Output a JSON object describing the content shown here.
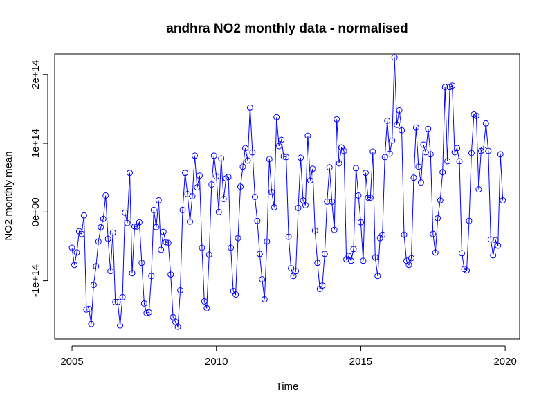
{
  "chart_data": {
    "type": "line",
    "title": "andhra NO2 monthly data - normalised",
    "xlabel": "Time",
    "ylabel": "NO2 monthly mean",
    "xlim": [
      2004.4,
      2020.5
    ],
    "ylim": [
      -185000000000000.0,
      230000000000000.0
    ],
    "x_ticks": [
      2005,
      2010,
      2015,
      2020
    ],
    "x_tick_labels": [
      "2005",
      "2010",
      "2015",
      "2020"
    ],
    "y_ticks": [
      -100000000000000.0,
      0,
      100000000000000.0,
      200000000000000.0
    ],
    "y_tick_labels": [
      "-1e+14",
      "0e+00",
      "1e+14",
      "2e+14"
    ],
    "grid": false,
    "legend": "none",
    "series_color": "#0000ff",
    "marker": "open-circle",
    "start_year": 2005,
    "points_per_year": 12,
    "values": [
      -52000000000000.0,
      -77000000000000.0,
      -59000000000000.0,
      -28000000000000.0,
      -32000000000000.0,
      -5000000000000.0,
      -142000000000000.0,
      -141000000000000.0,
      -163000000000000.0,
      -106000000000000.0,
      -79000000000000.0,
      -43000000000000.0,
      -22000000000000.0,
      -10000000000000.0,
      24000000000000.0,
      -39000000000000.0,
      -86000000000000.0,
      -30000000000000.0,
      -131000000000000.0,
      -131000000000000.0,
      -165000000000000.0,
      -124000000000000.0,
      -1000000000000.0,
      -16000000000000.0,
      57000000000000.0,
      -89000000000000.0,
      -21000000000000.0,
      -21000000000000.0,
      -15000000000000.0,
      -74000000000000.0,
      -133000000000000.0,
      -147000000000000.0,
      -146000000000000.0,
      -93000000000000.0,
      3000000000000.0,
      -22000000000000.0,
      17000000000000.0,
      -55000000000000.0,
      -29000000000000.0,
      -44000000000000.0,
      -45000000000000.0,
      -91000000000000.0,
      -153000000000000.0,
      -160000000000000.0,
      -167000000000000.0,
      -114000000000000.0,
      3000000000000.0,
      57000000000000.0,
      26000000000000.0,
      -14000000000000.0,
      23000000000000.0,
      82000000000000.0,
      36000000000000.0,
      53000000000000.0,
      -52000000000000.0,
      -130000000000000.0,
      -140000000000000.0,
      -62000000000000.0,
      40000000000000.0,
      82000000000000.0,
      52000000000000.0,
      0.0,
      78000000000000.0,
      19000000000000.0,
      49000000000000.0,
      51000000000000.0,
      -52000000000000.0,
      -115000000000000.0,
      -120000000000000.0,
      -38000000000000.0,
      37000000000000.0,
      66000000000000.0,
      93000000000000.0,
      75000000000000.0,
      152000000000000.0,
      87000000000000.0,
      22000000000000.0,
      -13000000000000.0,
      -61000000000000.0,
      -98000000000000.0,
      -127000000000000.0,
      -43000000000000.0,
      77000000000000.0,
      29000000000000.0,
      7000000000000.0,
      138000000000000.0,
      96000000000000.0,
      105000000000000.0,
      81000000000000.0,
      80000000000000.0,
      -36000000000000.0,
      -82000000000000.0,
      -93000000000000.0,
      -86000000000000.0,
      6000000000000.0,
      79000000000000.0,
      17000000000000.0,
      10000000000000.0,
      111000000000000.0,
      46000000000000.0,
      63000000000000.0,
      -27000000000000.0,
      -74000000000000.0,
      -112000000000000.0,
      -107000000000000.0,
      -61000000000000.0,
      15000000000000.0,
      65000000000000.0,
      15000000000000.0,
      -26000000000000.0,
      135000000000000.0,
      71000000000000.0,
      94000000000000.0,
      89000000000000.0,
      -69000000000000.0,
      -64000000000000.0,
      -71000000000000.0,
      -54000000000000.0,
      64000000000000.0,
      24000000000000.0,
      -15000000000000.0,
      -71000000000000.0,
      57000000000000.0,
      21000000000000.0,
      21000000000000.0,
      88000000000000.0,
      -66000000000000.0,
      -93000000000000.0,
      -38000000000000.0,
      -33000000000000.0,
      80000000000000.0,
      133000000000000.0,
      85000000000000.0,
      104000000000000.0,
      225000000000000.0,
      127000000000000.0,
      148000000000000.0,
      119000000000000.0,
      -33000000000000.0,
      -71000000000000.0,
      -77000000000000.0,
      -67000000000000.0,
      50000000000000.0,
      123000000000000.0,
      66000000000000.0,
      43000000000000.0,
      98000000000000.0,
      87000000000000.0,
      121000000000000.0,
      84000000000000.0,
      -32000000000000.0,
      -59000000000000.0,
      -9000000000000.0,
      17000000000000.0,
      58000000000000.0,
      182000000000000.0,
      74000000000000.0,
      182000000000000.0,
      184000000000000.0,
      87000000000000.0,
      93000000000000.0,
      74000000000000.0,
      -60000000000000.0,
      -83000000000000.0,
      -85000000000000.0,
      -13000000000000.0,
      86000000000000.0,
      142000000000000.0,
      140000000000000.0,
      33000000000000.0,
      89000000000000.0,
      91000000000000.0,
      129000000000000.0,
      89000000000000.0,
      -40000000000000.0,
      -63000000000000.0,
      -41000000000000.0,
      -49000000000000.0,
      84000000000000.0,
      17000000000000.0
    ]
  }
}
